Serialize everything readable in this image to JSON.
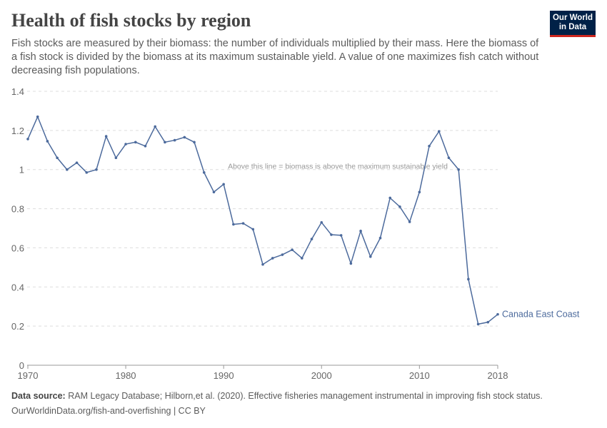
{
  "title": "Health of fish stocks by region",
  "subtitle": "Fish stocks are measured by their biomass: the number of individuals multiplied by their mass. Here the biomass of a fish stock is divided by the biomass at its maximum sustainable yield. A value of one maximizes fish catch without decreasing fish populations.",
  "logo": "Our World in Data",
  "footer": {
    "source_label": "Data source:",
    "source": "RAM Legacy Database; Hilborn,et al. (2020). Effective fisheries management instrumental in improving fish stock status.",
    "url": "OurWorldinData.org/fish-and-overfishing | CC BY"
  },
  "chart_data": {
    "type": "line",
    "ylim": [
      0,
      1.4
    ],
    "xlim": [
      1970,
      2018
    ],
    "yticks": [
      "0",
      "0.2",
      "0.4",
      "0.6",
      "0.8",
      "1",
      "1.2",
      "1.4"
    ],
    "xticks": [
      "1970",
      "1980",
      "1990",
      "2000",
      "2010",
      "2018"
    ],
    "grid": true,
    "annotation": "Above this line = biomass is above the maximum sustainable yield",
    "line_color": "#4c6a9c",
    "series": [
      {
        "name": "Canada East Coast",
        "x": [
          1970,
          1971,
          1972,
          1973,
          1974,
          1975,
          1976,
          1977,
          1978,
          1979,
          1980,
          1981,
          1982,
          1983,
          1984,
          1985,
          1986,
          1987,
          1988,
          1989,
          1990,
          1991,
          1992,
          1993,
          1994,
          1995,
          1996,
          1997,
          1998,
          1999,
          2000,
          2001,
          2002,
          2003,
          2004,
          2005,
          2006,
          2007,
          2008,
          2009,
          2010,
          2011,
          2012,
          2013,
          2014,
          2015,
          2016,
          2017,
          2018
        ],
        "values": [
          1.156,
          1.27,
          1.145,
          1.06,
          1.0,
          1.035,
          0.985,
          1.0,
          1.17,
          1.06,
          1.13,
          1.14,
          1.12,
          1.22,
          1.14,
          1.15,
          1.165,
          1.14,
          0.985,
          0.885,
          0.925,
          0.72,
          0.725,
          0.695,
          0.515,
          0.547,
          0.565,
          0.59,
          0.547,
          0.645,
          0.73,
          0.667,
          0.664,
          0.52,
          0.686,
          0.555,
          0.65,
          0.855,
          0.81,
          0.733,
          0.885,
          1.12,
          1.195,
          1.06,
          1.0,
          0.44,
          0.21,
          0.22,
          0.26
        ]
      }
    ]
  }
}
